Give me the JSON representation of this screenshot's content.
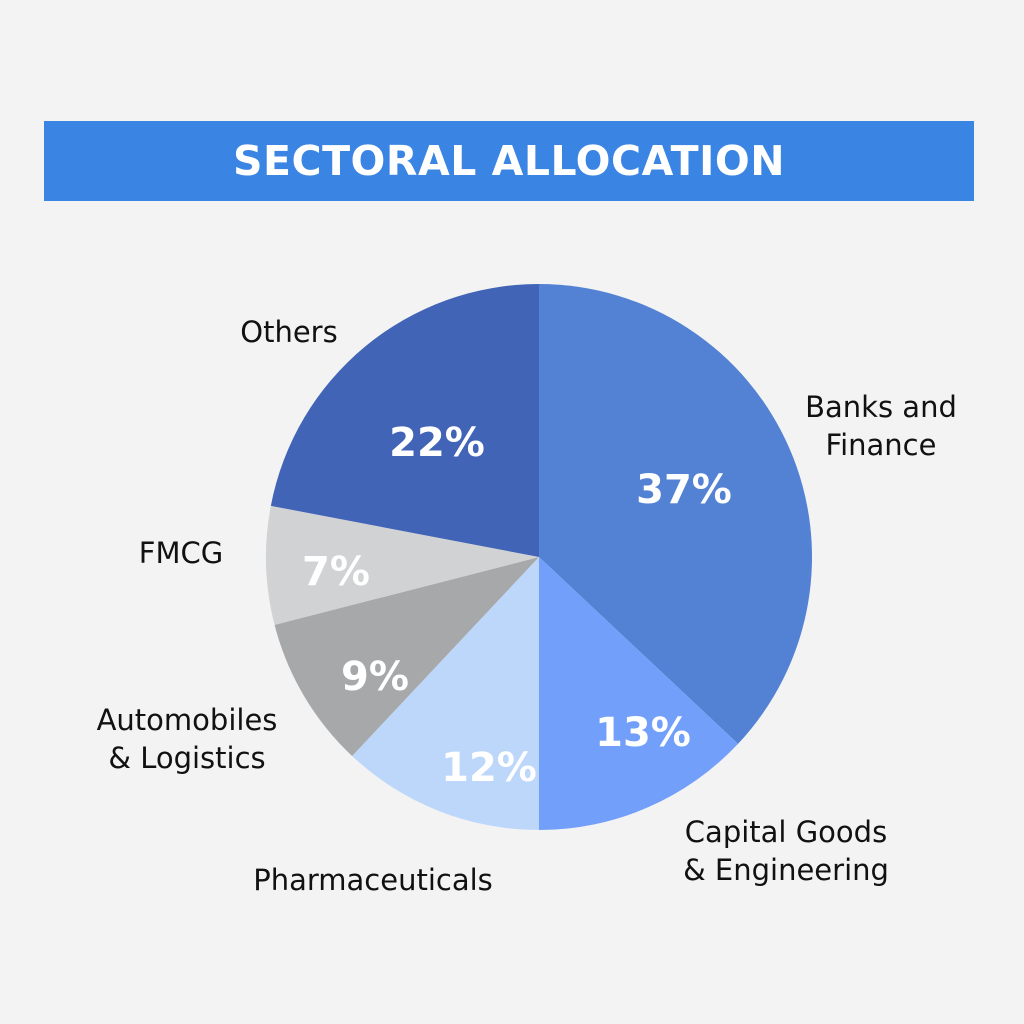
{
  "title": "SECTORAL ALLOCATION",
  "chart_data": {
    "type": "pie",
    "title": "SECTORAL ALLOCATION",
    "slices": [
      {
        "name": "Banks and Finance",
        "label_lines": [
          "Banks and",
          "Finance"
        ],
        "value": 37,
        "pct_label": "37%",
        "color": "#5382d4"
      },
      {
        "name": "Capital Goods & Engineering",
        "label_lines": [
          "Capital Goods",
          "& Engineering"
        ],
        "value": 13,
        "pct_label": "13%",
        "color": "#719ffa"
      },
      {
        "name": "Pharmaceuticals",
        "label_lines": [
          "Pharmaceuticals"
        ],
        "value": 12,
        "pct_label": "12%",
        "color": "#bdd7fb"
      },
      {
        "name": "Automobiles & Logistics",
        "label_lines": [
          "Automobiles",
          "& Logistics"
        ],
        "value": 9,
        "pct_label": "9%",
        "color": "#a7a8aa"
      },
      {
        "name": "FMCG",
        "label_lines": [
          "FMCG"
        ],
        "value": 7,
        "pct_label": "7%",
        "color": "#d1d2d3"
      },
      {
        "name": "Others",
        "label_lines": [
          "Others"
        ],
        "value": 22,
        "pct_label": "22%",
        "color": "#4164b7"
      }
    ]
  }
}
